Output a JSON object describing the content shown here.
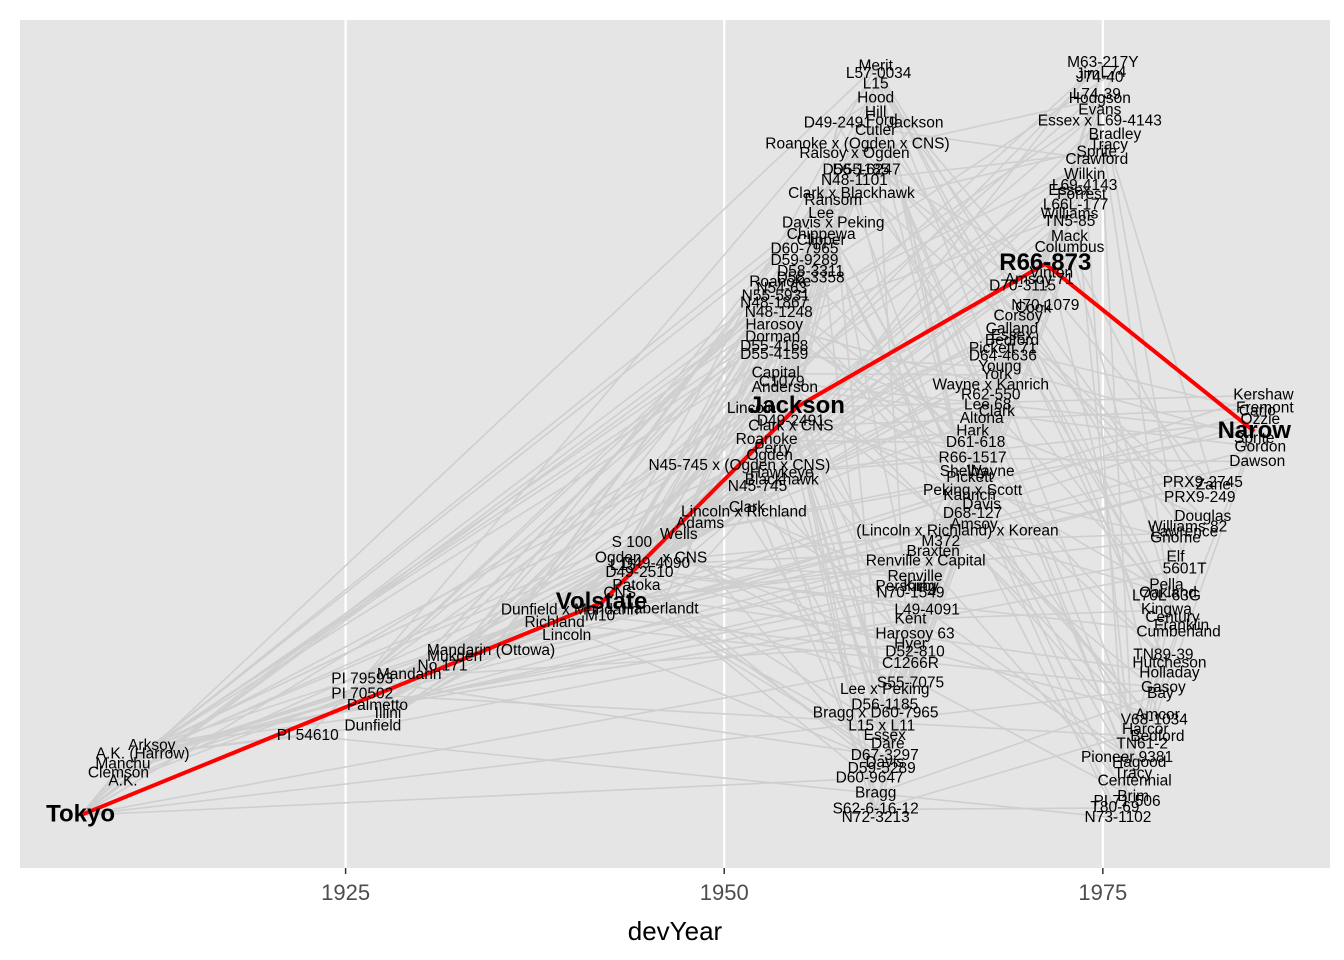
{
  "chart_data": {
    "type": "scatter",
    "xlabel": "devYear",
    "x_ticks": [
      1925,
      1950,
      1975
    ],
    "xlim": [
      1903.5,
      1990
    ],
    "y_range": [
      0,
      100
    ],
    "grid": true,
    "colors": {
      "panel": "#e5e5e5",
      "grid": "#ffffff",
      "edges": "#cfcfcf",
      "highlight_path": "#ff0000",
      "labels": "#000000",
      "tick_labels": "#4d4d4d"
    },
    "highlighted_path": [
      "Tokyo",
      "Volstate",
      "Jackson",
      "R66-873",
      "Narow"
    ],
    "nodes": [
      {
        "label": "Tokyo",
        "x": 1907.5,
        "y": 1.5,
        "hl": true
      },
      {
        "label": "A.K.",
        "x": 1910.3,
        "y": 6.2
      },
      {
        "label": "Clemson",
        "x": 1910,
        "y": 7.3
      },
      {
        "label": "Manchu",
        "x": 1910.3,
        "y": 8.5
      },
      {
        "label": "A.K. (Harrow)",
        "x": 1911.6,
        "y": 9.9
      },
      {
        "label": "Arksoy",
        "x": 1912.2,
        "y": 11.1
      },
      {
        "label": "PI 54610",
        "x": 1922.5,
        "y": 12.5
      },
      {
        "label": "Dunfield",
        "x": 1926.8,
        "y": 13.8
      },
      {
        "label": "Illini",
        "x": 1927.8,
        "y": 15.5
      },
      {
        "label": "Palmetto",
        "x": 1927.1,
        "y": 16.6
      },
      {
        "label": "PI 70502",
        "x": 1926.1,
        "y": 18.2
      },
      {
        "label": "PI 79593",
        "x": 1926.1,
        "y": 20.3
      },
      {
        "label": "Mandarin",
        "x": 1929.2,
        "y": 20.9
      },
      {
        "label": "No.171",
        "x": 1931.4,
        "y": 22.1
      },
      {
        "label": "Mukden",
        "x": 1932.2,
        "y": 23.4
      },
      {
        "label": "Mandarin (Ottowa)",
        "x": 1934.6,
        "y": 24.2
      },
      {
        "label": "Lincoln",
        "x": 1939.6,
        "y": 26.3
      },
      {
        "label": "Richland",
        "x": 1938.8,
        "y": 28.1
      },
      {
        "label": "Dunfield x Mandarin",
        "x": 1939.8,
        "y": 29.8
      },
      {
        "label": "M10",
        "x": 1941.8,
        "y": 29
      },
      {
        "label": "Volstate",
        "x": 1941.9,
        "y": 30.9,
        "hl": true
      },
      {
        "label": "Haberlandt",
        "x": 1945.8,
        "y": 30
      },
      {
        "label": "CNS",
        "x": 1943.1,
        "y": 32.2
      },
      {
        "label": "Patoka",
        "x": 1944.2,
        "y": 33.2
      },
      {
        "label": "D49-2510",
        "x": 1944.4,
        "y": 35.0
      },
      {
        "label": "L15",
        "x": 1943.3,
        "y": 36.0
      },
      {
        "label": "Ogden",
        "x": 1943,
        "y": 37.0
      },
      {
        "label": "x CNS",
        "x": 1947.4,
        "y": 37.0
      },
      {
        "label": "D49-4090",
        "x": 1945.5,
        "y": 36.3
      },
      {
        "label": "S 100",
        "x": 1943.9,
        "y": 39.2
      },
      {
        "label": "Wells",
        "x": 1947.0,
        "y": 40.3
      },
      {
        "label": "Adams",
        "x": 1948.4,
        "y": 41.8
      },
      {
        "label": "Lincoln x Richland",
        "x": 1951.3,
        "y": 43.4
      },
      {
        "label": "Clark",
        "x": 1951.5,
        "y": 44.0
      },
      {
        "label": "N45-745",
        "x": 1952.2,
        "y": 46.9
      },
      {
        "label": "Blackhawk",
        "x": 1953.8,
        "y": 47.8
      },
      {
        "label": "Hawkeye",
        "x": 1953.8,
        "y": 48.8
      },
      {
        "label": "N45-745 x (Ogden x CNS)",
        "x": 1951.0,
        "y": 49.8
      },
      {
        "label": "Ogden",
        "x": 1953.0,
        "y": 51.2
      },
      {
        "label": "Perry",
        "x": 1953.2,
        "y": 52.2
      },
      {
        "label": "Roanoke",
        "x": 1952.8,
        "y": 53.4
      },
      {
        "label": "Clark x CNS",
        "x": 1954.4,
        "y": 55.3
      },
      {
        "label": "D49-2491",
        "x": 1954.4,
        "y": 56.0
      },
      {
        "label": "Lincoln",
        "x": 1951.8,
        "y": 57.7
      },
      {
        "label": "Jackson",
        "x": 1954.8,
        "y": 58.0,
        "hl": true
      },
      {
        "label": "Anderson",
        "x": 1954.0,
        "y": 60.6
      },
      {
        "label": "C1079",
        "x": 1953.8,
        "y": 61.4
      },
      {
        "label": "Capital",
        "x": 1953.4,
        "y": 62.6
      },
      {
        "label": "D55-4159",
        "x": 1953.3,
        "y": 65.2
      },
      {
        "label": "D55-4168",
        "x": 1953.3,
        "y": 66.3
      },
      {
        "label": "Dorman",
        "x": 1953.2,
        "y": 67.6
      },
      {
        "label": "Harosoy",
        "x": 1953.3,
        "y": 69.3
      },
      {
        "label": "N48-1248",
        "x": 1953.6,
        "y": 71.0
      },
      {
        "label": "N48-1867",
        "x": 1953.3,
        "y": 72.3
      },
      {
        "label": "N55-5931",
        "x": 1953.4,
        "y": 73.3
      },
      {
        "label": "N54-63",
        "x": 1953.8,
        "y": 74.3
      },
      {
        "label": "Roanoke",
        "x": 1953.7,
        "y": 75.2
      },
      {
        "label": "D58-3358",
        "x": 1955.7,
        "y": 75.8
      },
      {
        "label": "D58-3311",
        "x": 1955.7,
        "y": 76.7
      },
      {
        "label": "D59-9289",
        "x": 1955.3,
        "y": 78.2
      },
      {
        "label": "D60-7965",
        "x": 1955.3,
        "y": 79.8
      },
      {
        "label": "Clipper",
        "x": 1956.4,
        "y": 81.0
      },
      {
        "label": "Chippewa",
        "x": 1956.4,
        "y": 81.8
      },
      {
        "label": "Davis x Peking",
        "x": 1957.2,
        "y": 83.4
      },
      {
        "label": "Lee",
        "x": 1956.4,
        "y": 84.7
      },
      {
        "label": "Ransom",
        "x": 1957.2,
        "y": 86.5
      },
      {
        "label": "Clark x Blackhawk",
        "x": 1958.4,
        "y": 87.5
      },
      {
        "label": "N48-1101",
        "x": 1958.6,
        "y": 89.3
      },
      {
        "label": "D55-6247",
        "x": 1959.4,
        "y": 90.7
      },
      {
        "label": "D56-1185",
        "x": 1958.7,
        "y": 90.7
      },
      {
        "label": "Ralsoy x Ogden",
        "x": 1958.6,
        "y": 93.0
      },
      {
        "label": "Roanoke x (Ogden x CNS)",
        "x": 1958.8,
        "y": 94.3
      },
      {
        "label": "Cutler",
        "x": 1960.0,
        "y": 96.2
      },
      {
        "label": "Ford",
        "x": 1960.4,
        "y": 97.6
      },
      {
        "label": "D49-2491",
        "x": 1957.5,
        "y": 97.2
      },
      {
        "label": "Jackson",
        "x": 1962.6,
        "y": 97.2
      },
      {
        "label": "Hill",
        "x": 1960.0,
        "y": 98.7
      },
      {
        "label": "Hood",
        "x": 1960.0,
        "y": 100.7
      },
      {
        "label": "L15",
        "x": 1960.0,
        "y": 102.6
      },
      {
        "label": "L57-0034",
        "x": 1960.2,
        "y": 104.1
      },
      {
        "label": "Merit",
        "x": 1960.0,
        "y": 105.1
      },
      {
        "label": "N72-3213",
        "x": 1960.0,
        "y": 1.1
      },
      {
        "label": "S62-6-16-12",
        "x": 1960.0,
        "y": 2.3
      },
      {
        "label": "Bragg",
        "x": 1960.0,
        "y": 4.5
      },
      {
        "label": "D60-9647",
        "x": 1959.6,
        "y": 6.6
      },
      {
        "label": "D59-5289",
        "x": 1960.4,
        "y": 7.9
      },
      {
        "label": "Davis",
        "x": 1960.6,
        "y": 8.7
      },
      {
        "label": "D67-3297",
        "x": 1960.6,
        "y": 9.7
      },
      {
        "label": "Dare",
        "x": 1960.8,
        "y": 11.3
      },
      {
        "label": "Essex",
        "x": 1960.6,
        "y": 12.5
      },
      {
        "label": "L15 x L11",
        "x": 1960.4,
        "y": 13.8
      },
      {
        "label": "Bragg x D60-7965",
        "x": 1960.0,
        "y": 15.6
      },
      {
        "label": "D56-1185",
        "x": 1960.6,
        "y": 16.7
      },
      {
        "label": "Lee x Peking",
        "x": 1960.6,
        "y": 18.8
      },
      {
        "label": "S55-7075",
        "x": 1962.3,
        "y": 19.7
      },
      {
        "label": "C1266R",
        "x": 1962.3,
        "y": 22.4
      },
      {
        "label": "D52-810",
        "x": 1962.6,
        "y": 24.0
      },
      {
        "label": "Hyer",
        "x": 1962.3,
        "y": 25.1
      },
      {
        "label": "Harosoy 63",
        "x": 1962.6,
        "y": 26.5
      },
      {
        "label": "Kent",
        "x": 1962.3,
        "y": 28.6
      },
      {
        "label": "L49-4091",
        "x": 1963.4,
        "y": 29.8
      },
      {
        "label": "N70-1549",
        "x": 1962.3,
        "y": 32.2
      },
      {
        "label": "Pershing",
        "x": 1962.0,
        "y": 33.1
      },
      {
        "label": "Kirby",
        "x": 1963.0,
        "y": 33.1
      },
      {
        "label": "Renville",
        "x": 1962.6,
        "y": 34.5
      },
      {
        "label": "Renville x Capital",
        "x": 1963.3,
        "y": 36.6
      },
      {
        "label": "Braxten",
        "x": 1963.8,
        "y": 37.9
      },
      {
        "label": "M372",
        "x": 1964.3,
        "y": 39.3
      },
      {
        "label": "(Lincoln x Richland) x Korean",
        "x": 1965.4,
        "y": 40.8
      },
      {
        "label": "Amsoy",
        "x": 1966.5,
        "y": 41.7
      },
      {
        "label": "D68-127",
        "x": 1966.4,
        "y": 43.2
      },
      {
        "label": "Davis",
        "x": 1967.0,
        "y": 44.4
      },
      {
        "label": "Kanrich",
        "x": 1966.2,
        "y": 45.7
      },
      {
        "label": "Peking x Scott",
        "x": 1966.4,
        "y": 46.4
      },
      {
        "label": "Pickett",
        "x": 1966.2,
        "y": 48.2
      },
      {
        "label": "Shelby",
        "x": 1965.8,
        "y": 49.0
      },
      {
        "label": "Wayne",
        "x": 1967.6,
        "y": 49.0
      },
      {
        "label": "R66-1517",
        "x": 1966.4,
        "y": 50.9
      },
      {
        "label": "D61-618",
        "x": 1966.6,
        "y": 53.0
      },
      {
        "label": "Hark",
        "x": 1966.4,
        "y": 54.6
      },
      {
        "label": "Altona",
        "x": 1967.0,
        "y": 56.3
      },
      {
        "label": "Clark",
        "x": 1968.0,
        "y": 57.3
      },
      {
        "label": "Lee 68",
        "x": 1967.4,
        "y": 58.2
      },
      {
        "label": "R62-550",
        "x": 1967.6,
        "y": 59.6
      },
      {
        "label": "Wayne x Kanrich",
        "x": 1967.6,
        "y": 61.0
      },
      {
        "label": "York",
        "x": 1968.0,
        "y": 62.4
      },
      {
        "label": "Young",
        "x": 1968.2,
        "y": 63.5
      },
      {
        "label": "D64-4636",
        "x": 1968.4,
        "y": 65.0
      },
      {
        "label": "Pickett 71",
        "x": 1968.4,
        "y": 66.0
      },
      {
        "label": "Bedford",
        "x": 1969.0,
        "y": 67.1
      },
      {
        "label": "Essex",
        "x": 1969.0,
        "y": 67.8
      },
      {
        "label": "Calland",
        "x": 1969.0,
        "y": 68.7
      },
      {
        "label": "Corsoy",
        "x": 1969.4,
        "y": 70.5
      },
      {
        "label": "N70-1079",
        "x": 1971.2,
        "y": 72.0
      },
      {
        "label": "Cook",
        "x": 1970.4,
        "y": 71.6
      },
      {
        "label": "D70-3115",
        "x": 1969.7,
        "y": 74.7
      },
      {
        "label": "Amsoy 71",
        "x": 1970.8,
        "y": 75.6
      },
      {
        "label": "Vinton",
        "x": 1971.6,
        "y": 76.5
      },
      {
        "label": "R66-873",
        "x": 1971.2,
        "y": 77.8,
        "hl": true
      },
      {
        "label": "Columbus",
        "x": 1972.8,
        "y": 80.0
      },
      {
        "label": "Mack",
        "x": 1972.8,
        "y": 81.5
      },
      {
        "label": "TN5-85",
        "x": 1972.8,
        "y": 83.6
      },
      {
        "label": "Williams",
        "x": 1972.8,
        "y": 84.6
      },
      {
        "label": "L66L-177",
        "x": 1973.2,
        "y": 85.9
      },
      {
        "label": "Forrest",
        "x": 1973.6,
        "y": 87.3
      },
      {
        "label": "Essex",
        "x": 1972.8,
        "y": 87.9
      },
      {
        "label": "L69-4143",
        "x": 1973.8,
        "y": 88.6
      },
      {
        "label": "Wilkin",
        "x": 1973.8,
        "y": 90.1
      },
      {
        "label": "Crawford",
        "x": 1974.6,
        "y": 92.2
      },
      {
        "label": "Sprite",
        "x": 1974.6,
        "y": 93.2
      },
      {
        "label": "Tracy",
        "x": 1975.4,
        "y": 94.2
      },
      {
        "label": "Bradley",
        "x": 1975.8,
        "y": 95.6
      },
      {
        "label": "Essex x L69-4143",
        "x": 1974.8,
        "y": 97.5
      },
      {
        "label": "Evans",
        "x": 1974.8,
        "y": 99.0
      },
      {
        "label": "Hodgson",
        "x": 1974.8,
        "y": 100.6
      },
      {
        "label": "L74-39",
        "x": 1974.6,
        "y": 101.2
      },
      {
        "label": "J74-40",
        "x": 1974.8,
        "y": 103.5
      },
      {
        "label": "Jim",
        "x": 1974.0,
        "y": 104.0
      },
      {
        "label": "L74",
        "x": 1975.7,
        "y": 104.2
      },
      {
        "label": "M63-217Y",
        "x": 1975.0,
        "y": 105.6
      },
      {
        "label": "N73-1102",
        "x": 1976.0,
        "y": 1.1
      },
      {
        "label": "T80-69",
        "x": 1975.8,
        "y": 2.5
      },
      {
        "label": "PI 71-506",
        "x": 1976.6,
        "y": 3.3
      },
      {
        "label": "Brim",
        "x": 1977.0,
        "y": 4.0
      },
      {
        "label": "Centennial",
        "x": 1977.1,
        "y": 6.2
      },
      {
        "label": "Tracy",
        "x": 1977.0,
        "y": 7.2
      },
      {
        "label": "Hagood",
        "x": 1977.4,
        "y": 8.7
      },
      {
        "label": "Pioneer 9381",
        "x": 1976.6,
        "y": 9.4
      },
      {
        "label": "TN61-2",
        "x": 1977.6,
        "y": 11.3
      },
      {
        "label": "Bedford",
        "x": 1978.6,
        "y": 12.3
      },
      {
        "label": "Harcor",
        "x": 1977.8,
        "y": 13.3
      },
      {
        "label": "V68-1034",
        "x": 1978.4,
        "y": 14.6
      },
      {
        "label": "Amcor",
        "x": 1978.6,
        "y": 15.3
      },
      {
        "label": "Bay",
        "x": 1978.8,
        "y": 18.3
      },
      {
        "label": "Gasoy",
        "x": 1979.0,
        "y": 19.1
      },
      {
        "label": "Holladay",
        "x": 1979.4,
        "y": 21.1
      },
      {
        "label": "Hutcheson",
        "x": 1979.4,
        "y": 22.5
      },
      {
        "label": "TN89-39",
        "x": 1979.0,
        "y": 23.6
      },
      {
        "label": "Cumberland",
        "x": 1980.0,
        "y": 26.8
      },
      {
        "label": "Franklin",
        "x": 1980.2,
        "y": 27.7
      },
      {
        "label": "Century",
        "x": 1979.6,
        "y": 28.8
      },
      {
        "label": "Kingwa",
        "x": 1979.2,
        "y": 29.9
      },
      {
        "label": "L70L-63G",
        "x": 1979.2,
        "y": 31.8
      },
      {
        "label": "Oakland",
        "x": 1979.3,
        "y": 32.2
      },
      {
        "label": "Pella",
        "x": 1979.2,
        "y": 33.3
      },
      {
        "label": "5601T",
        "x": 1980.4,
        "y": 35.5
      },
      {
        "label": "Elf",
        "x": 1979.8,
        "y": 37.2
      },
      {
        "label": "Gnome",
        "x": 1979.8,
        "y": 39.8
      },
      {
        "label": "Lawrence",
        "x": 1980.4,
        "y": 40.6
      },
      {
        "label": "Williams 82",
        "x": 1980.6,
        "y": 41.3
      },
      {
        "label": "Douglas",
        "x": 1981.6,
        "y": 42.8
      },
      {
        "label": "PRX9-249",
        "x": 1981.4,
        "y": 45.4
      },
      {
        "label": "Zane",
        "x": 1982.3,
        "y": 47.1
      },
      {
        "label": "PRX9-2745",
        "x": 1981.6,
        "y": 47.5
      },
      {
        "label": "Dawson",
        "x": 1985.2,
        "y": 50.4
      },
      {
        "label": "Gordon",
        "x": 1985.4,
        "y": 52.4
      },
      {
        "label": "Sprite",
        "x": 1985.0,
        "y": 53.6
      },
      {
        "label": "Narow",
        "x": 1985.0,
        "y": 54.6,
        "hl": true
      },
      {
        "label": "Ozzie",
        "x": 1985.4,
        "y": 56.2
      },
      {
        "label": "Carlo",
        "x": 1985.2,
        "y": 57.4
      },
      {
        "label": "Fremont",
        "x": 1985.7,
        "y": 57.8
      },
      {
        "label": "Kershaw",
        "x": 1985.6,
        "y": 59.6
      }
    ]
  }
}
